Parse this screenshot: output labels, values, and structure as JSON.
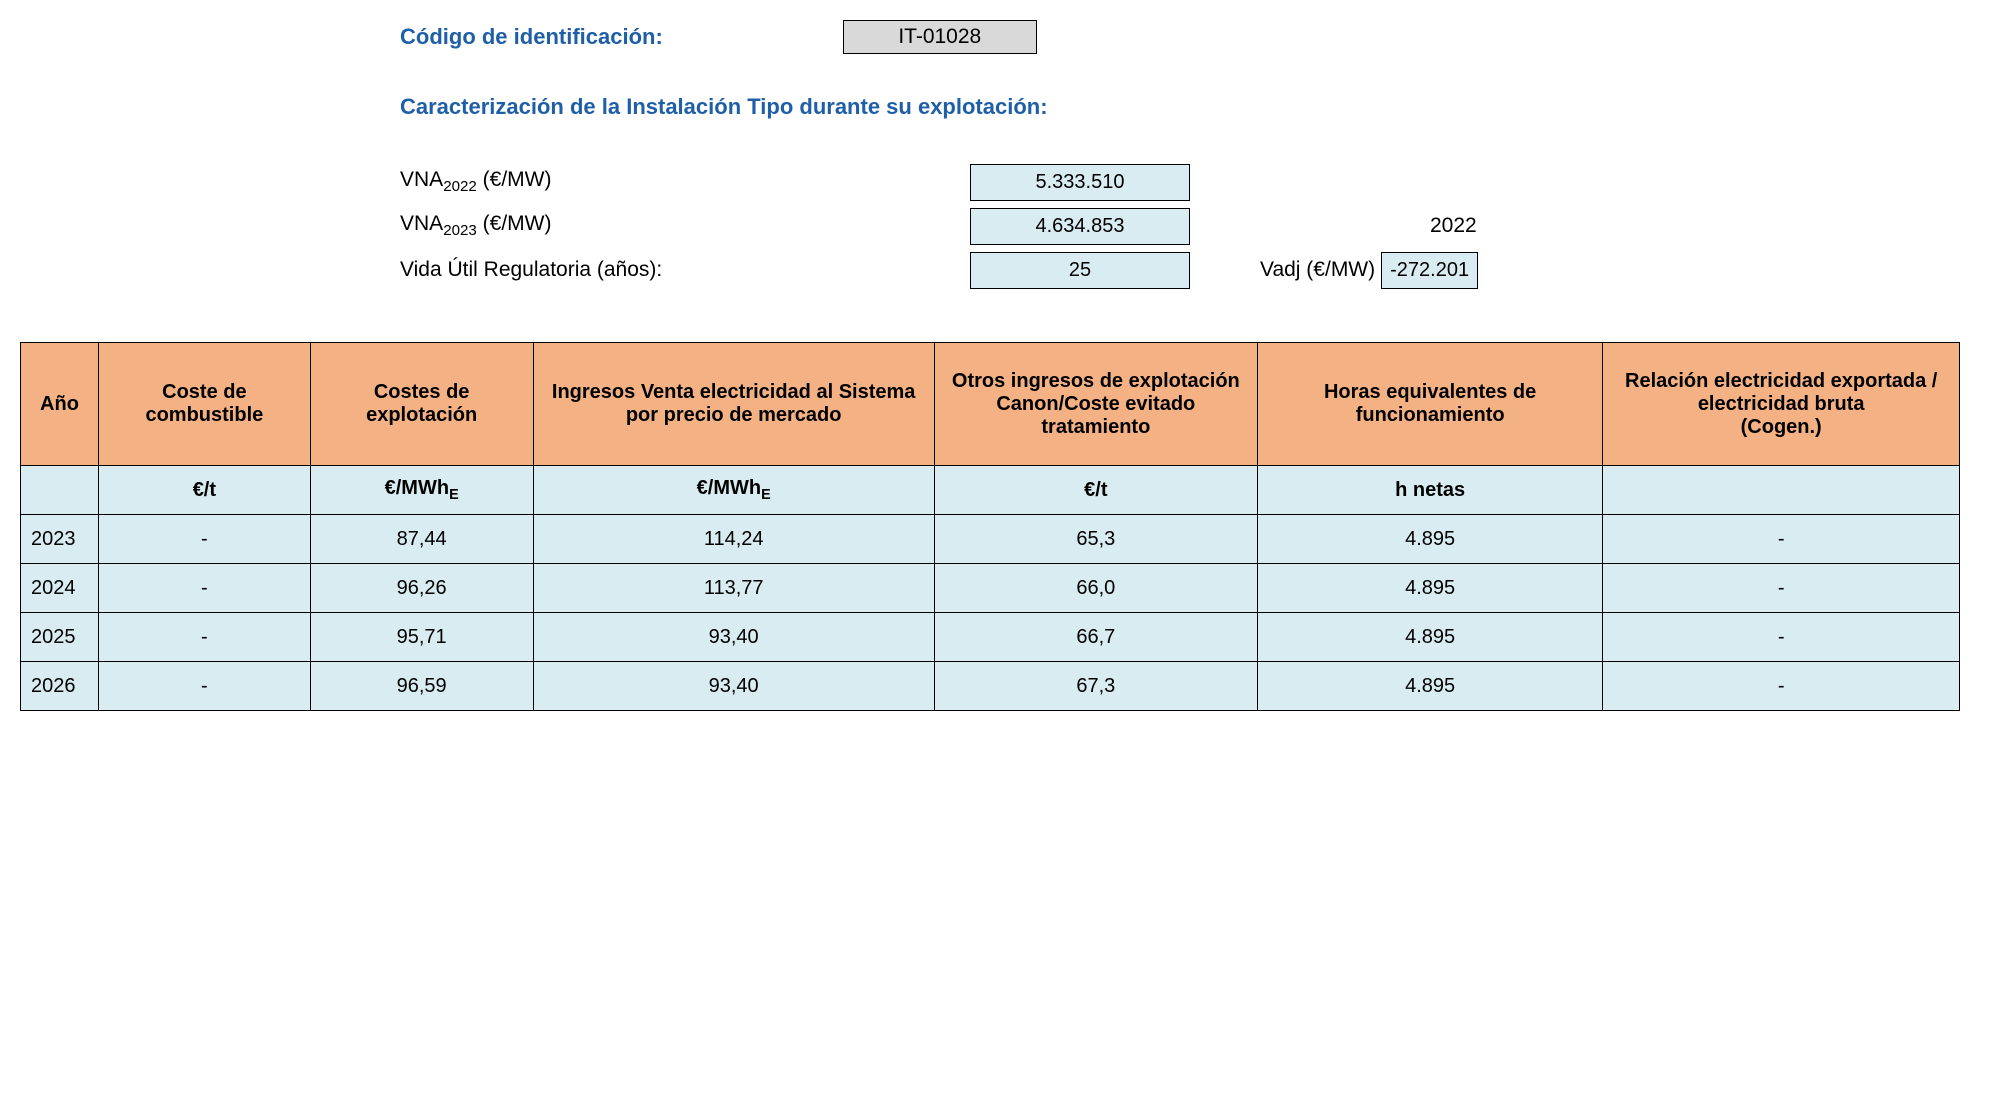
{
  "header": {
    "code_label": "Código de identificación:",
    "code_value": "IT-01028",
    "section_title": "Caracterización de la Instalación Tipo durante su explotación:"
  },
  "params": {
    "vna2022_label_pre": "VNA",
    "vna2022_sub": "2022",
    "vna_unit": " (€/MW)",
    "vna2022_value": "5.333.510",
    "vna2023_sub": "2023",
    "vna2023_value": "4.634.853",
    "year_right": "2022",
    "life_label": "Vida Útil Regulatoria (años):",
    "life_value": "25",
    "vadj_label": "Vadj (€/MW)",
    "vadj_value": "-272.201"
  },
  "table": {
    "columns": [
      "Año",
      "Coste de combustible",
      "Costes de explotación",
      "Ingresos Venta electricidad al Sistema por precio de mercado",
      "Otros ingresos de explotación Canon/Coste evitado tratamiento",
      "Horas equivalentes de funcionamiento",
      "Relación electricidad exportada / electricidad bruta\n(Cogen.)"
    ],
    "units": [
      "",
      "€/t",
      "€/MWh",
      "€/MWh",
      "€/t",
      "h netas",
      ""
    ],
    "unit_e_cols": [
      2,
      3
    ],
    "rows": [
      [
        "2023",
        "-",
        "87,44",
        "114,24",
        "65,3",
        "4.895",
        "-"
      ],
      [
        "2024",
        "-",
        "96,26",
        "113,77",
        "66,0",
        "4.895",
        "-"
      ],
      [
        "2025",
        "-",
        "95,71",
        "93,40",
        "66,7",
        "4.895",
        "-"
      ],
      [
        "2026",
        "-",
        "96,59",
        "93,40",
        "67,3",
        "4.895",
        "-"
      ]
    ]
  },
  "colors": {
    "header_bg": "#f4b183",
    "body_bg": "#d9ecf2",
    "code_bg": "#d9d9d9",
    "heading_text": "#1f5fa8",
    "border": "#000000",
    "page_bg": "#ffffff"
  }
}
